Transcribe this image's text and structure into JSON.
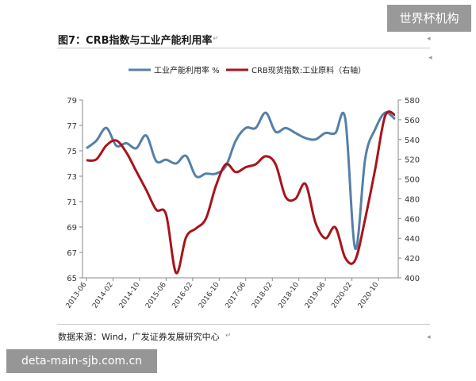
{
  "page": {
    "title": "图7：CRB指数与工业产能利用率",
    "source": "数据来源：Wind，广发证券发展研究中心",
    "watermark_top_right": "世界杯机构",
    "watermark_bottom_left": "deta-main-sjb.com.cn",
    "para_mark": "↵",
    "corner_mark": "◂"
  },
  "chart_data": {
    "type": "line",
    "title": "",
    "legend_position": "top",
    "grid": false,
    "x_tick_labels": [
      "2013-06",
      "2014-02",
      "2014-10",
      "2015-06",
      "2016-02",
      "2016-10",
      "2017-06",
      "2018-02",
      "2018-10",
      "2019-06",
      "2020-02",
      "2020-10"
    ],
    "y_left": {
      "range": [
        65,
        79
      ],
      "ticks": [
        "65",
        "67",
        "69",
        "71",
        "73",
        "75",
        "77",
        "79"
      ]
    },
    "y_right": {
      "range": [
        400,
        580
      ],
      "ticks": [
        "400",
        "420",
        "440",
        "460",
        "480",
        "500",
        "520",
        "540",
        "560",
        "580"
      ]
    },
    "series": [
      {
        "name": "工业产能利用率 %",
        "axis": "left",
        "color": "#5580a8",
        "x": [
          "2013Q2",
          "2013Q3",
          "2013Q4",
          "2014Q1",
          "2014Q2",
          "2014Q3",
          "2014Q4",
          "2015Q1",
          "2015Q2",
          "2015Q3",
          "2015Q4",
          "2016Q1",
          "2016Q2",
          "2016Q3",
          "2016Q4",
          "2017Q1",
          "2017Q2",
          "2017Q3",
          "2017Q4",
          "2018Q1",
          "2018Q2",
          "2018Q3",
          "2018Q4",
          "2019Q1",
          "2019Q2",
          "2019Q3",
          "2019Q4",
          "2020Q1",
          "2020Q2",
          "2020Q3",
          "2020Q4",
          "2021Q1"
        ],
        "values": [
          75.2,
          75.8,
          76.8,
          75.4,
          75.6,
          75.2,
          76.2,
          74.2,
          74.3,
          74.0,
          74.6,
          73.0,
          73.2,
          73.2,
          73.8,
          75.8,
          76.8,
          76.8,
          78.0,
          76.5,
          76.8,
          76.4,
          76.0,
          75.9,
          76.4,
          76.4,
          77.5,
          67.3,
          74.4,
          76.7,
          78.0,
          77.5
        ]
      },
      {
        "name": "CRB现货指数:工业原料（右轴）",
        "axis": "right",
        "color": "#a8141c",
        "x": [
          "2013Q2",
          "2013Q3",
          "2013Q4",
          "2014Q1",
          "2014Q2",
          "2014Q3",
          "2014Q4",
          "2015Q1",
          "2015Q2",
          "2015Q3",
          "2015Q4",
          "2016Q1",
          "2016Q2",
          "2016Q3",
          "2016Q4",
          "2017Q1",
          "2017Q2",
          "2017Q3",
          "2017Q4",
          "2018Q1",
          "2018Q2",
          "2018Q3",
          "2018Q4",
          "2019Q1",
          "2019Q2",
          "2019Q3",
          "2019Q4",
          "2020Q1",
          "2020Q2",
          "2020Q3",
          "2020Q4",
          "2021Q1"
        ],
        "values": [
          519,
          520,
          534,
          539,
          527,
          508,
          489,
          469,
          464,
          405,
          441,
          450,
          460,
          493,
          515,
          507,
          512,
          515,
          523,
          515,
          482,
          480,
          495,
          456,
          440,
          451,
          420,
          418,
          460,
          510,
          564,
          565
        ]
      }
    ]
  }
}
